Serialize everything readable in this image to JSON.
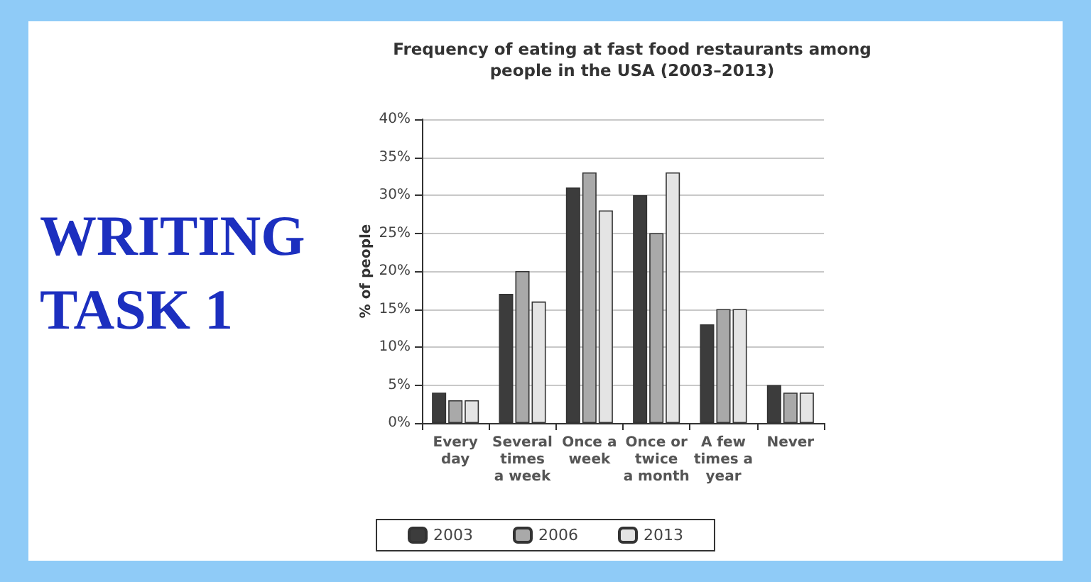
{
  "chart_data": {
    "type": "bar",
    "title": "Frequency of eating at fast food restaurants among\npeople in the USA (2003–2013)",
    "ylabel": "% of people",
    "categories": [
      "Every\nday",
      "Several\ntimes\na week",
      "Once a\nweek",
      "Once or\ntwice\na month",
      "A few\ntimes a\nyear",
      "Never"
    ],
    "series": [
      {
        "name": "2003",
        "color": "#3c3c3c",
        "values": [
          4,
          17,
          31,
          30,
          13,
          5
        ]
      },
      {
        "name": "2006",
        "color": "#a9a9a9",
        "values": [
          3,
          20,
          33,
          25,
          15,
          4
        ]
      },
      {
        "name": "2013",
        "color": "#e4e4e4",
        "values": [
          3,
          16,
          28,
          33,
          15,
          4
        ]
      }
    ],
    "ylim": [
      0,
      40
    ],
    "yticks": [
      {
        "value": 0,
        "label": "0%"
      },
      {
        "value": 5,
        "label": "5%"
      },
      {
        "value": 10,
        "label": "10%"
      },
      {
        "value": 15,
        "label": "15%"
      },
      {
        "value": 20,
        "label": "20%"
      },
      {
        "value": 25,
        "label": "25%"
      },
      {
        "value": 30,
        "label": "30%"
      },
      {
        "value": 35,
        "label": "35%"
      },
      {
        "value": 40,
        "label": "40%"
      }
    ],
    "grid": "y",
    "legend": "bottom",
    "annotations": [
      "WRITING\nTASK 1"
    ]
  }
}
